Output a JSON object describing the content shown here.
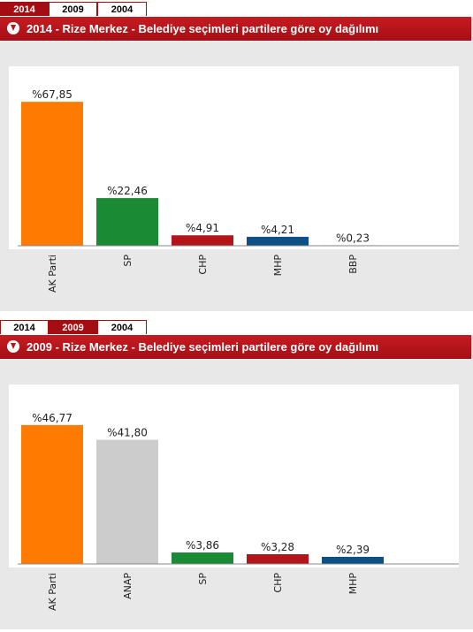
{
  "panels": [
    {
      "id": "2014",
      "tabs": [
        {
          "label": "2014",
          "active": true
        },
        {
          "label": "2009",
          "active": false
        },
        {
          "label": "2004",
          "active": false
        }
      ],
      "title": "2014 - Rize Merkez - Belediye seçimleri partilere göre oy dağılımı"
    },
    {
      "id": "2009",
      "tabs": [
        {
          "label": "2014",
          "active": false
        },
        {
          "label": "2009",
          "active": true
        },
        {
          "label": "2004",
          "active": false
        }
      ],
      "title": "2009 - Rize Merkez - Belediye seçimleri partilere göre oy dağılımı"
    }
  ],
  "colors": {
    "accent": "#b5151b",
    "plot_background": "#ffffff",
    "chart_background": "#e8e8e8"
  },
  "chart_data": [
    {
      "type": "bar",
      "title": "2014 - Rize Merkez - Belediye seçimleri partilere göre oy dağılımı",
      "categories": [
        "AK Parti",
        "SP",
        "CHP",
        "MHP",
        "BBP"
      ],
      "values": [
        67.85,
        22.46,
        4.91,
        4.21,
        0.23
      ],
      "data_labels": [
        "%67,85",
        "%22,46",
        "%4,91",
        "%4,21",
        "%0,23"
      ],
      "colors": [
        "#ff7a00",
        "#1b8a35",
        "#b3141a",
        "#0e4f86",
        "#7fb85d"
      ],
      "ylim": [
        0,
        70
      ],
      "xlabel": "",
      "ylabel": "",
      "grid": false,
      "legend": "none"
    },
    {
      "type": "bar",
      "title": "2009 - Rize Merkez - Belediye seçimleri partilere göre oy dağılımı",
      "categories": [
        "AK Parti",
        "ANAP",
        "SP",
        "CHP",
        "MHP"
      ],
      "values": [
        46.77,
        41.8,
        3.86,
        3.28,
        2.39
      ],
      "data_labels": [
        "%46,77",
        "%41,80",
        "%3,86",
        "%3,28",
        "%2,39"
      ],
      "colors": [
        "#ff7a00",
        "#cccccc",
        "#1b8a35",
        "#b3141a",
        "#0e4f86"
      ],
      "ylim": [
        0,
        50
      ],
      "xlabel": "",
      "ylabel": "",
      "grid": false,
      "legend": "none"
    }
  ]
}
